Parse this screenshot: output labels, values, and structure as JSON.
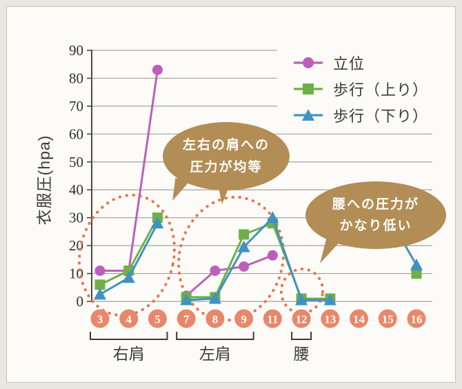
{
  "bubbles": {
    "shoulders": {
      "line1": "左右の肩への",
      "line2": "圧力が均等"
    },
    "waist": {
      "line1": "腰への圧力が",
      "line2": "かなり低い"
    }
  },
  "colors": {
    "standing": "#bd5ebd",
    "walk_up": "#6fb046",
    "walk_down": "#3f92c1",
    "axis_number_circle": "#e8876b",
    "highlight_dots": "#e8734e",
    "speech_bubble": "#b28d55",
    "gridline": "#a3a19b",
    "axis": "#4a4844",
    "text": "#3b3a37"
  },
  "chart_data": {
    "type": "line",
    "title": "",
    "ylabel": "衣服圧(hpa)",
    "ylim": [
      0,
      90
    ],
    "y_ticks": [
      0,
      10,
      20,
      30,
      40,
      50,
      60,
      70,
      80,
      90
    ],
    "x_slots": [
      "3",
      "4",
      "5",
      "7",
      "8",
      "9",
      "11",
      "12",
      "13",
      "14",
      "15",
      "16"
    ],
    "sensor_groups": [
      {
        "label": "右肩",
        "from": "3",
        "to": "5"
      },
      {
        "label": "左肩",
        "from": "7",
        "to": "9"
      },
      {
        "label": "腰",
        "from": "12",
        "to": "12"
      }
    ],
    "legend_position": "top-right",
    "grid": true,
    "series": [
      {
        "name": "立位",
        "color": "#bd5ebd",
        "marker": "circle",
        "segments": [
          [
            [
              "3",
              11
            ],
            [
              "4",
              11
            ],
            [
              "5",
              83
            ]
          ],
          [
            [
              "7",
              2
            ],
            [
              "8",
              11
            ],
            [
              "9",
              12.5
            ],
            [
              "11",
              16.5
            ]
          ],
          [
            [
              "12",
              1
            ],
            [
              "13",
              1
            ]
          ],
          [
            [
              "16",
              11.5
            ]
          ]
        ]
      },
      {
        "name": "歩行（上り）",
        "color": "#6fb046",
        "marker": "square",
        "segments": [
          [
            [
              "3",
              6
            ],
            [
              "4",
              11
            ],
            [
              "5",
              30
            ]
          ],
          [
            [
              "7",
              1.5
            ],
            [
              "8",
              1.5
            ],
            [
              "9",
              24
            ],
            [
              "11",
              28
            ],
            [
              "12",
              1
            ],
            [
              "13",
              1
            ]
          ],
          [
            [
              "16",
              10
            ]
          ]
        ]
      },
      {
        "name": "歩行（下り）",
        "color": "#3f92c1",
        "marker": "triangle",
        "segments": [
          [
            [
              "3",
              2.5
            ],
            [
              "4",
              8.5
            ],
            [
              "5",
              28
            ]
          ],
          [
            [
              "7",
              0.5
            ],
            [
              "8",
              1
            ],
            [
              "9",
              19.5
            ],
            [
              "11",
              30
            ],
            [
              "12",
              0.5
            ],
            [
              "13",
              0.5
            ]
          ],
          [
            [
              "15.5",
              22
            ],
            [
              "16",
              13
            ]
          ]
        ]
      }
    ],
    "annotations": [
      "左右の肩への圧力が均等",
      "腰への圧力がかなり低い"
    ]
  }
}
